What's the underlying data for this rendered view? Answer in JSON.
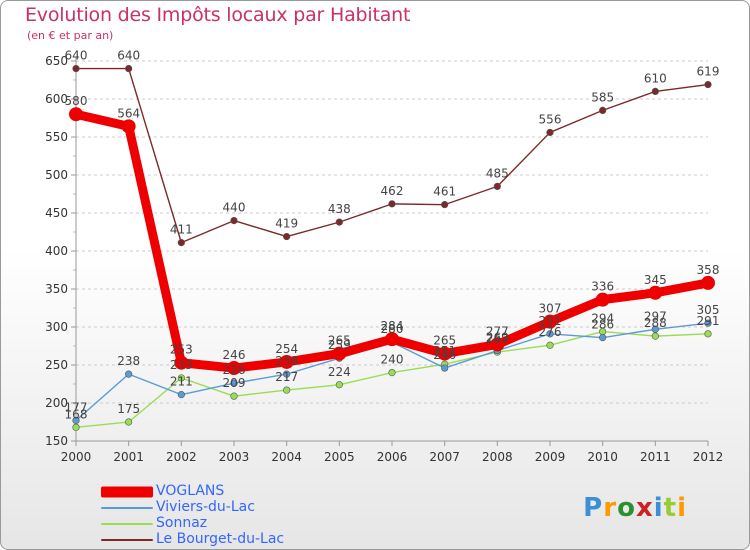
{
  "header": {
    "title": "Evolution des Impôts locaux par Habitant",
    "subtitle": "(en € et par an)"
  },
  "chart_data": {
    "type": "line",
    "title": "Evolution des Impôts locaux par Habitant",
    "subtitle": "(en € et par an)",
    "xlabel": "",
    "ylabel": "",
    "x": [
      "2000",
      "2001",
      "2002",
      "2003",
      "2004",
      "2005",
      "2006",
      "2007",
      "2008",
      "2009",
      "2010",
      "2011",
      "2012"
    ],
    "ylim": [
      150,
      650
    ],
    "yticks": [
      150,
      200,
      250,
      300,
      350,
      400,
      450,
      500,
      550,
      600,
      650
    ],
    "grid": "horizontal dashed",
    "series": [
      {
        "name": "VOGLANS",
        "color": "#ee0000",
        "values": [
          580,
          564,
          253,
          246,
          254,
          265,
          284,
          265,
          277,
          307,
          336,
          345,
          358
        ]
      },
      {
        "name": "Viviers-du-Lac",
        "color": "#5b9bd5",
        "values": [
          177,
          238,
          211,
          226,
          238,
          259,
          280,
          246,
          269,
          291,
          286,
          297,
          305
        ]
      },
      {
        "name": "Sonnaz",
        "color": "#99dd55",
        "values": [
          168,
          175,
          233,
          209,
          217,
          224,
          240,
          251,
          267,
          276,
          294,
          288,
          291
        ]
      },
      {
        "name": "Le Bourget-du-Lac",
        "color": "#7a2a2a",
        "values": [
          640,
          640,
          411,
          440,
          419,
          438,
          462,
          461,
          485,
          556,
          585,
          610,
          619
        ]
      }
    ]
  },
  "legend": {
    "items": [
      {
        "label": "VOGLANS",
        "color": "#ee0000",
        "text_color": "#3366ff"
      },
      {
        "label": "Viviers-du-Lac",
        "color": "#5b9bd5",
        "text_color": "#3366ff"
      },
      {
        "label": "Sonnaz",
        "color": "#99dd55",
        "text_color": "#3366ff"
      },
      {
        "label": "Le Bourget-du-Lac",
        "color": "#7a2a2a",
        "text_color": "#3366ff"
      }
    ]
  },
  "logo": {
    "letters": [
      "P",
      "r",
      "o",
      "x",
      "i",
      "t",
      "i"
    ],
    "colors": [
      "#3b8fd6",
      "#ff9900",
      "#2d8f2d",
      "#cc2222",
      "#3b8fd6",
      "#99cc33",
      "#ff9900"
    ]
  }
}
